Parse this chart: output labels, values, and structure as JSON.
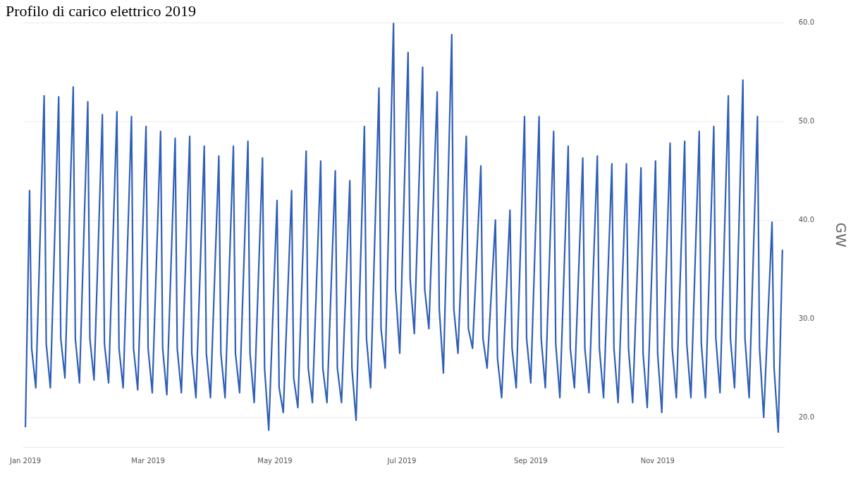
{
  "chart_data": {
    "type": "line",
    "title": "Profilo di carico elettrico 2019",
    "ylabel": "GW",
    "x": [
      "2019-01-01",
      "2019-01-03",
      "2019-01-04",
      "2019-01-06",
      "2019-01-10",
      "2019-01-11",
      "2019-01-13",
      "2019-01-17",
      "2019-01-18",
      "2019-01-20",
      "2019-01-24",
      "2019-01-25",
      "2019-01-27",
      "2019-01-31",
      "2019-02-01",
      "2019-02-03",
      "2019-02-07",
      "2019-02-08",
      "2019-02-10",
      "2019-02-14",
      "2019-02-15",
      "2019-02-17",
      "2019-02-21",
      "2019-02-22",
      "2019-02-24",
      "2019-02-28",
      "2019-03-01",
      "2019-03-03",
      "2019-03-07",
      "2019-03-08",
      "2019-03-10",
      "2019-03-14",
      "2019-03-15",
      "2019-03-17",
      "2019-03-21",
      "2019-03-22",
      "2019-03-24",
      "2019-03-28",
      "2019-03-29",
      "2019-03-31",
      "2019-04-04",
      "2019-04-05",
      "2019-04-07",
      "2019-04-11",
      "2019-04-12",
      "2019-04-14",
      "2019-04-18",
      "2019-04-19",
      "2019-04-21",
      "2019-04-25",
      "2019-04-26",
      "2019-04-28",
      "2019-05-02",
      "2019-05-03",
      "2019-05-05",
      "2019-05-09",
      "2019-05-10",
      "2019-05-12",
      "2019-05-16",
      "2019-05-17",
      "2019-05-19",
      "2019-05-23",
      "2019-05-24",
      "2019-05-26",
      "2019-05-30",
      "2019-05-31",
      "2019-06-02",
      "2019-06-06",
      "2019-06-07",
      "2019-06-09",
      "2019-06-13",
      "2019-06-14",
      "2019-06-16",
      "2019-06-20",
      "2019-06-21",
      "2019-06-23",
      "2019-06-27",
      "2019-06-28",
      "2019-06-30",
      "2019-07-04",
      "2019-07-05",
      "2019-07-07",
      "2019-07-11",
      "2019-07-12",
      "2019-07-14",
      "2019-07-18",
      "2019-07-19",
      "2019-07-21",
      "2019-07-25",
      "2019-07-26",
      "2019-07-28",
      "2019-08-01",
      "2019-08-02",
      "2019-08-04",
      "2019-08-08",
      "2019-08-09",
      "2019-08-11",
      "2019-08-15",
      "2019-08-16",
      "2019-08-18",
      "2019-08-22",
      "2019-08-23",
      "2019-08-25",
      "2019-08-29",
      "2019-08-30",
      "2019-09-01",
      "2019-09-05",
      "2019-09-06",
      "2019-09-08",
      "2019-09-12",
      "2019-09-13",
      "2019-09-15",
      "2019-09-19",
      "2019-09-20",
      "2019-09-22",
      "2019-09-26",
      "2019-09-27",
      "2019-09-29",
      "2019-10-03",
      "2019-10-04",
      "2019-10-06",
      "2019-10-10",
      "2019-10-11",
      "2019-10-13",
      "2019-10-17",
      "2019-10-18",
      "2019-10-20",
      "2019-10-24",
      "2019-10-25",
      "2019-10-27",
      "2019-10-31",
      "2019-11-01",
      "2019-11-03",
      "2019-11-07",
      "2019-11-08",
      "2019-11-10",
      "2019-11-14",
      "2019-11-15",
      "2019-11-17",
      "2019-11-21",
      "2019-11-22",
      "2019-11-24",
      "2019-11-28",
      "2019-11-29",
      "2019-12-01",
      "2019-12-05",
      "2019-12-06",
      "2019-12-08",
      "2019-12-12",
      "2019-12-13",
      "2019-12-15",
      "2019-12-19",
      "2019-12-20",
      "2019-12-22",
      "2019-12-26",
      "2019-12-27",
      "2019-12-29",
      "2019-12-31"
    ],
    "series": [
      {
        "color": "#2f5fb8",
        "values": [
          19,
          43,
          27,
          23,
          52.6,
          27.5,
          23,
          52.5,
          28,
          24,
          53.5,
          28,
          23.5,
          52,
          28,
          23.8,
          50.7,
          27.5,
          23.5,
          51,
          27,
          23,
          50.5,
          27,
          22.8,
          49.5,
          27,
          22.5,
          49,
          27,
          22.3,
          48.3,
          27,
          22.5,
          48.5,
          26.5,
          22,
          47.5,
          26.5,
          22,
          46.5,
          26.5,
          22,
          47.5,
          26.5,
          22.5,
          48,
          26.5,
          21.5,
          46.3,
          25,
          18.7,
          42,
          23,
          20.5,
          43,
          24,
          21,
          47,
          25,
          21.5,
          46,
          25,
          21.5,
          45,
          25,
          21.5,
          44,
          25,
          19.7,
          49.5,
          28,
          23,
          53.4,
          29,
          25,
          60,
          33,
          26.5,
          57,
          34,
          28.5,
          55.5,
          33,
          29,
          53,
          31,
          24.5,
          58.8,
          31,
          26.5,
          48.5,
          29,
          27,
          45.5,
          28,
          25,
          40,
          26,
          22,
          41,
          27,
          23,
          50.5,
          28,
          23.5,
          50.5,
          28,
          23,
          49,
          27.5,
          22,
          47.5,
          27,
          23,
          46.3,
          27,
          22.5,
          46.5,
          27,
          22,
          45.7,
          27,
          21.5,
          45.7,
          27,
          21.5,
          45.3,
          26.5,
          21,
          46,
          26.5,
          20.5,
          47.8,
          27,
          22,
          48,
          27.5,
          22,
          49,
          27.5,
          22,
          49.5,
          28,
          22.5,
          52.6,
          28,
          23,
          54.2,
          28,
          22,
          50.5,
          27,
          20,
          39.8,
          25,
          18.5,
          37
        ]
      }
    ],
    "xlim": [
      "2018-12-31",
      "2020-01-01"
    ],
    "xticks": [
      {
        "value": "2019-01-01",
        "label": "Jan 2019"
      },
      {
        "value": "2019-03-01",
        "label": "Mar 2019"
      },
      {
        "value": "2019-05-01",
        "label": "May 2019"
      },
      {
        "value": "2019-07-01",
        "label": "Jul 2019"
      },
      {
        "value": "2019-09-01",
        "label": "Sep 2019"
      },
      {
        "value": "2019-11-01",
        "label": "Nov 2019"
      }
    ],
    "ylim": [
      17,
      60
    ],
    "yticks": [
      {
        "value": 20,
        "label": "20.0"
      },
      {
        "value": 30,
        "label": "30.0"
      },
      {
        "value": 40,
        "label": "40.0"
      },
      {
        "value": 50,
        "label": "50.0"
      },
      {
        "value": 60,
        "label": "60.0"
      }
    ],
    "grid": "y",
    "marker": "none",
    "line_style": "solid",
    "legend": false
  }
}
